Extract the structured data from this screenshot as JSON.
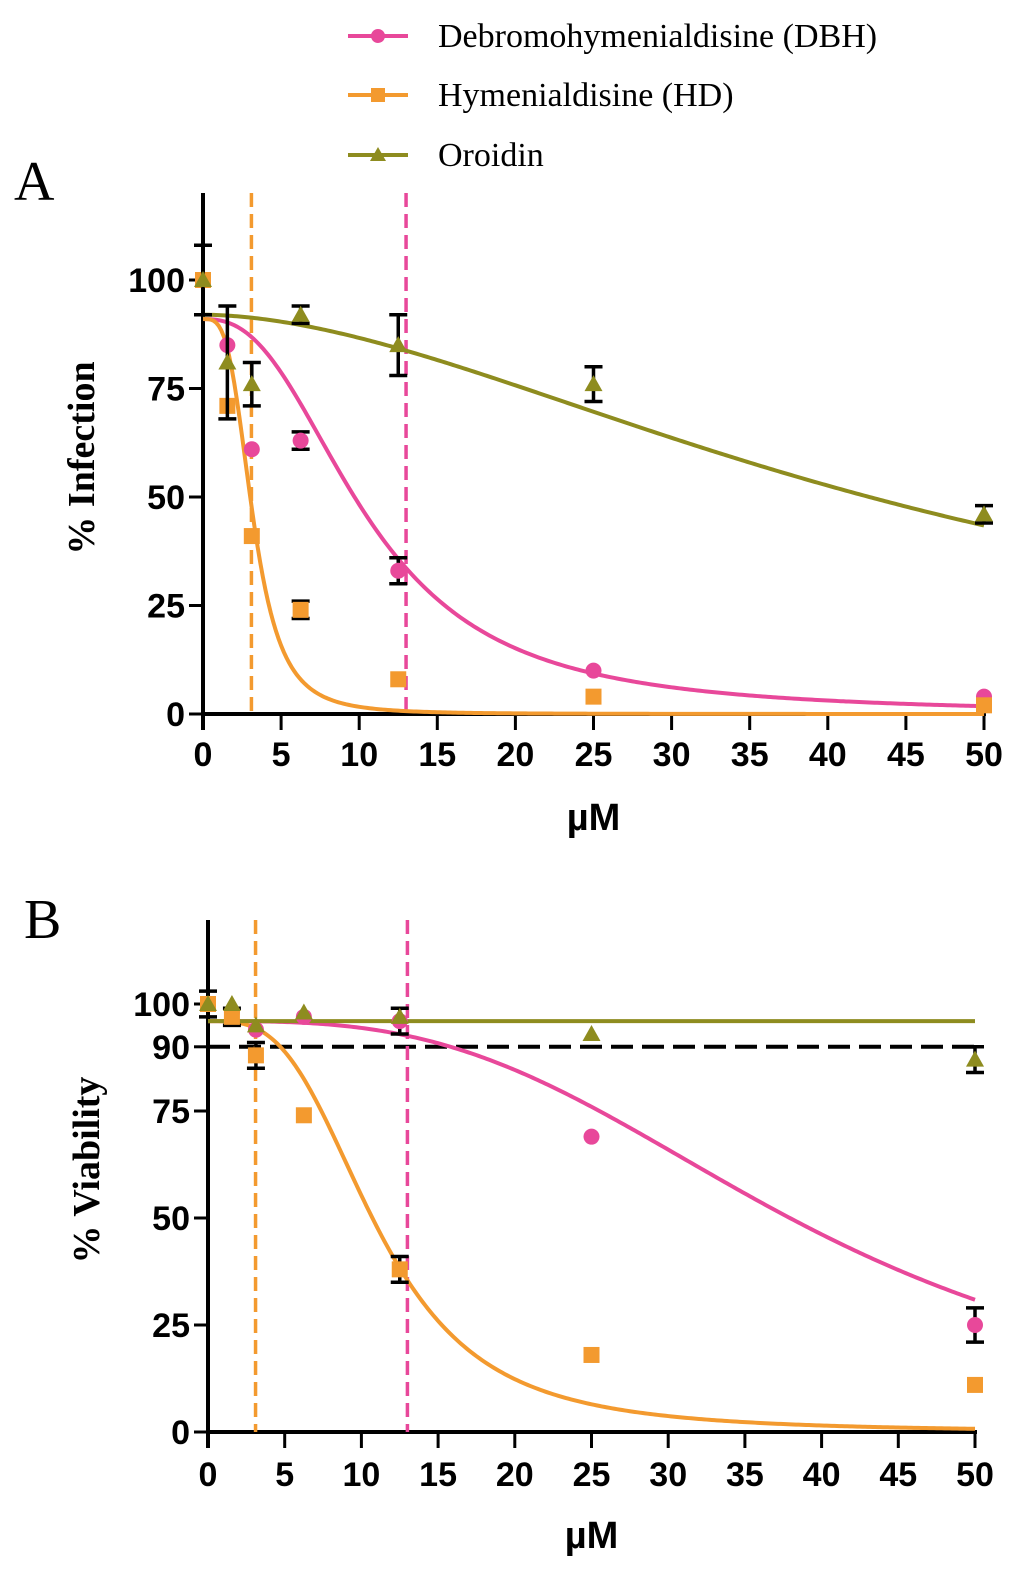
{
  "legend": {
    "entries": [
      {
        "label": "Debromohymenialdisine (DBH)",
        "color": "#e8489a",
        "marker": "circle"
      },
      {
        "label": "Hymenialdisine (HD)",
        "color": "#f39a2f",
        "marker": "square"
      },
      {
        "label": "Oroidin",
        "color": "#8e8c1f",
        "marker": "triangle"
      }
    ]
  },
  "chart_data": [
    {
      "panel": "A",
      "type": "scatter",
      "title": "",
      "xlabel": "µM",
      "ylabel": "% Infection",
      "xlim": [
        0,
        50
      ],
      "ylim": [
        0,
        120
      ],
      "xticks": [
        0,
        5,
        10,
        15,
        20,
        25,
        30,
        35,
        40,
        45,
        50
      ],
      "yticks": [
        0,
        25,
        50,
        75,
        100
      ],
      "vlines": [
        {
          "x": 3.1,
          "series": "Hymenialdisine (HD)"
        },
        {
          "x": 13.0,
          "series": "Debromohymenialdisine (DBH)"
        }
      ],
      "hlines": [],
      "series": [
        {
          "name": "Debromohymenialdisine (DBH)",
          "color": "#e8489a",
          "marker": "circle",
          "x": [
            0,
            1.56,
            3.125,
            6.25,
            12.5,
            25,
            50
          ],
          "y": [
            100,
            85,
            61,
            63,
            33,
            10,
            4
          ],
          "err": [
            0,
            0,
            0,
            2,
            3,
            0,
            0
          ],
          "fit": {
            "top": 91,
            "bottom": 0,
            "ec50": 10.5,
            "hill": 2.5
          }
        },
        {
          "name": "Hymenialdisine (HD)",
          "color": "#f39a2f",
          "marker": "square",
          "x": [
            0,
            1.56,
            3.125,
            6.25,
            12.5,
            25,
            50
          ],
          "y": [
            100,
            71,
            41,
            24,
            8,
            4,
            2
          ],
          "err": [
            0,
            0,
            0,
            2,
            0,
            0,
            0
          ],
          "fit": {
            "top": 91,
            "bottom": 0,
            "ec50": 3.2,
            "hill": 3.5
          }
        },
        {
          "name": "Oroidin",
          "color": "#8e8c1f",
          "marker": "triangle",
          "x": [
            0,
            1.56,
            3.125,
            6.25,
            12.5,
            25,
            50
          ],
          "y": [
            100,
            81,
            76,
            92,
            85,
            76,
            46
          ],
          "err": [
            8,
            13,
            5,
            2,
            7,
            4,
            2
          ],
          "fit": {
            "top": 92,
            "bottom": 0,
            "ec50": 47,
            "hill": 1.8
          }
        }
      ]
    },
    {
      "panel": "B",
      "type": "scatter",
      "title": "",
      "xlabel": "µM",
      "ylabel": "% Viability",
      "xlim": [
        0,
        50
      ],
      "ylim": [
        0,
        120
      ],
      "xticks": [
        0,
        5,
        10,
        15,
        20,
        25,
        30,
        35,
        40,
        45,
        50
      ],
      "yticks": [
        0,
        25,
        50,
        75,
        90,
        100
      ],
      "vlines": [
        {
          "x": 3.1,
          "series": "Hymenialdisine (HD)"
        },
        {
          "x": 13.0,
          "series": "Debromohymenialdisine (DBH)"
        }
      ],
      "hlines": [
        {
          "y": 90,
          "color": "#000000"
        }
      ],
      "series": [
        {
          "name": "Debromohymenialdisine (DBH)",
          "color": "#e8489a",
          "marker": "circle",
          "x": [
            0,
            1.56,
            3.125,
            6.25,
            12.5,
            25,
            50
          ],
          "y": [
            100,
            98,
            94,
            97,
            96,
            69,
            25
          ],
          "err": [
            0,
            0,
            0,
            0,
            3,
            0,
            4
          ],
          "fit": {
            "top": 96,
            "bottom": 0,
            "ec50": 39,
            "hill": 3.0
          }
        },
        {
          "name": "Hymenialdisine (HD)",
          "color": "#f39a2f",
          "marker": "square",
          "x": [
            0,
            1.56,
            3.125,
            6.25,
            12.5,
            25,
            50
          ],
          "y": [
            100,
            97,
            88,
            74,
            38,
            18,
            11
          ],
          "err": [
            3,
            2,
            3,
            0,
            3,
            0,
            0
          ],
          "fit": {
            "top": 96,
            "bottom": 0,
            "ec50": 11,
            "hill": 3.2
          }
        },
        {
          "name": "Oroidin",
          "color": "#8e8c1f",
          "marker": "triangle",
          "x": [
            0,
            1.56,
            3.125,
            6.25,
            12.5,
            25,
            50
          ],
          "y": [
            100,
            100,
            95,
            98,
            97,
            93,
            87
          ],
          "err": [
            0,
            0,
            0,
            0,
            0,
            0,
            3
          ],
          "fit": {
            "flat": 96
          }
        }
      ]
    }
  ],
  "panels": [
    {
      "letter": "A"
    },
    {
      "letter": "B"
    }
  ]
}
